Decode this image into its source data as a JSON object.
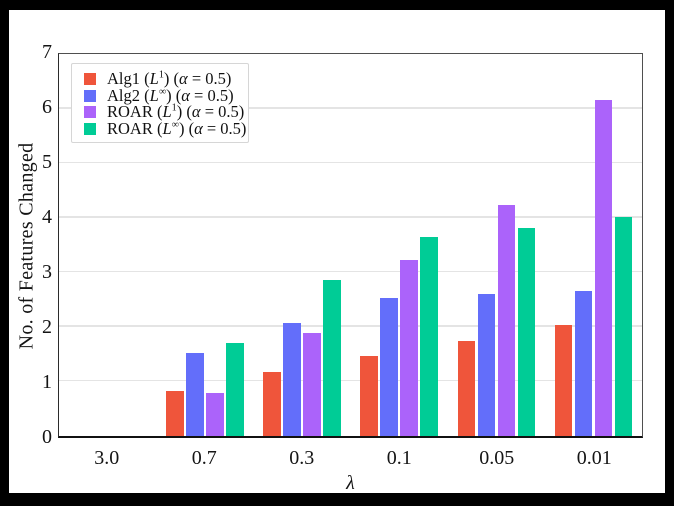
{
  "figure": {
    "background_color": "#ffffff",
    "frame_color": "#000000",
    "spine_color": "#4f4f4f",
    "gridline_color": "#e4e4e4"
  },
  "chart_data": {
    "type": "bar",
    "title": "",
    "xlabel": "λ",
    "ylabel": "No. of Features Changed",
    "ylim": [
      0,
      7
    ],
    "yticks": [
      0,
      1,
      2,
      3,
      4,
      5,
      6,
      7
    ],
    "grid": "horizontal",
    "legend_position": "upper-left",
    "categories": [
      "3.0",
      "0.7",
      "0.3",
      "0.1",
      "0.05",
      "0.01"
    ],
    "series": [
      {
        "name": "Alg1",
        "norm_letter": "L",
        "norm_exponent": "1",
        "alpha_label": "α = 0.5",
        "color": "#EF553B",
        "values": [
          0,
          0.83,
          1.17,
          1.47,
          1.74,
          2.03
        ]
      },
      {
        "name": "Alg2",
        "norm_letter": "L",
        "norm_exponent": "∞",
        "alpha_label": "α = 0.5",
        "color": "#636EFA",
        "values": [
          0,
          1.52,
          2.08,
          2.52,
          2.6,
          2.65
        ]
      },
      {
        "name": "ROAR",
        "norm_letter": "L",
        "norm_exponent": "1",
        "alpha_label": "α = 0.5",
        "color": "#AB63FA",
        "values": [
          0,
          0.79,
          1.89,
          3.23,
          4.24,
          6.15
        ]
      },
      {
        "name": "ROAR",
        "norm_letter": "L",
        "norm_exponent": "∞",
        "alpha_label": "α = 0.5",
        "color": "#00CC96",
        "values": [
          0,
          1.71,
          2.86,
          3.65,
          3.82,
          4.01
        ]
      }
    ]
  }
}
